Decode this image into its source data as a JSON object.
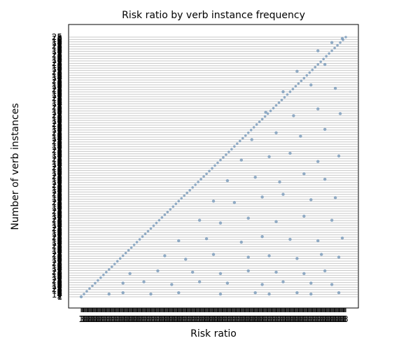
{
  "chart_data": {
    "type": "scatter",
    "title": "Risk ratio by verb instance frequency",
    "xlabel": "Risk ratio",
    "ylabel": "Number of verb instances",
    "grid": "horizontal",
    "legend": "none",
    "point_color": "#6f93b5",
    "point_opacity": 0.75,
    "overplotted_tick_labels": true,
    "x_category_count": 320,
    "y_category_count": 270,
    "visible_y_tick_labels": [
      "25",
      "3",
      "10",
      "5",
      "6",
      "8",
      "14",
      "2",
      "1"
    ],
    "visible_x_tick_labels": [
      "1",
      "3"
    ],
    "series": [
      {
        "points": [
          [
            0,
            0
          ],
          [
            4,
            4
          ],
          [
            8,
            8
          ],
          [
            12,
            12
          ],
          [
            16,
            16
          ],
          [
            20,
            20
          ],
          [
            24,
            24
          ],
          [
            28,
            28
          ],
          [
            32,
            32
          ],
          [
            36,
            36
          ],
          [
            40,
            40
          ],
          [
            44,
            44
          ],
          [
            48,
            48
          ],
          [
            52,
            52
          ],
          [
            56,
            56
          ],
          [
            60,
            60
          ],
          [
            64,
            64
          ],
          [
            68,
            68
          ],
          [
            72,
            72
          ],
          [
            76,
            76
          ],
          [
            80,
            80
          ],
          [
            84,
            84
          ],
          [
            88,
            88
          ],
          [
            92,
            92
          ],
          [
            96,
            96
          ],
          [
            100,
            100
          ],
          [
            104,
            104
          ],
          [
            108,
            108
          ],
          [
            112,
            112
          ],
          [
            116,
            116
          ],
          [
            120,
            120
          ],
          [
            124,
            124
          ],
          [
            128,
            128
          ],
          [
            132,
            132
          ],
          [
            136,
            136
          ],
          [
            140,
            140
          ],
          [
            144,
            144
          ],
          [
            148,
            148
          ],
          [
            152,
            152
          ],
          [
            156,
            156
          ],
          [
            160,
            160
          ],
          [
            164,
            164
          ],
          [
            168,
            168
          ],
          [
            172,
            172
          ],
          [
            176,
            176
          ],
          [
            180,
            180
          ],
          [
            184,
            184
          ],
          [
            188,
            188
          ],
          [
            192,
            192
          ],
          [
            196,
            196
          ],
          [
            200,
            200
          ],
          [
            204,
            204
          ],
          [
            208,
            208
          ],
          [
            212,
            212
          ],
          [
            216,
            216
          ],
          [
            220,
            220
          ],
          [
            224,
            224
          ],
          [
            228,
            228
          ],
          [
            232,
            232
          ],
          [
            236,
            236
          ],
          [
            240,
            240
          ],
          [
            244,
            244
          ],
          [
            248,
            248
          ],
          [
            252,
            252
          ],
          [
            256,
            256
          ],
          [
            260,
            260
          ],
          [
            264,
            264
          ],
          [
            268,
            268
          ],
          [
            272,
            272
          ],
          [
            276,
            276
          ],
          [
            280,
            280
          ],
          [
            284,
            284
          ],
          [
            288,
            288
          ],
          [
            292,
            292
          ],
          [
            296,
            296
          ],
          [
            300,
            300
          ],
          [
            304,
            304
          ],
          [
            308,
            308
          ],
          [
            312,
            312
          ],
          [
            316,
            316
          ],
          [
            320,
            320
          ],
          [
            324,
            324
          ],
          [
            328,
            328
          ],
          [
            332,
            332
          ],
          [
            336,
            336
          ],
          [
            340,
            340
          ],
          [
            344,
            344
          ],
          [
            348,
            348
          ],
          [
            352,
            352
          ],
          [
            356,
            356
          ],
          [
            360,
            360
          ],
          [
            364,
            364
          ],
          [
            368,
            368
          ],
          [
            372,
            372
          ],
          [
            376,
            376
          ],
          [
            380,
            380
          ],
          [
            40,
            4
          ],
          [
            60,
            6
          ],
          [
            100,
            4
          ],
          [
            140,
            6
          ],
          [
            200,
            4
          ],
          [
            250,
            6
          ],
          [
            270,
            4
          ],
          [
            310,
            6
          ],
          [
            330,
            4
          ],
          [
            370,
            6
          ],
          [
            60,
            20
          ],
          [
            90,
            22
          ],
          [
            130,
            18
          ],
          [
            170,
            22
          ],
          [
            210,
            20
          ],
          [
            260,
            18
          ],
          [
            290,
            22
          ],
          [
            330,
            20
          ],
          [
            360,
            18
          ],
          [
            70,
            34
          ],
          [
            110,
            38
          ],
          [
            160,
            36
          ],
          [
            200,
            34
          ],
          [
            240,
            38
          ],
          [
            280,
            36
          ],
          [
            320,
            34
          ],
          [
            350,
            38
          ],
          [
            120,
            60
          ],
          [
            150,
            55
          ],
          [
            190,
            62
          ],
          [
            240,
            58
          ],
          [
            270,
            60
          ],
          [
            310,
            56
          ],
          [
            345,
            62
          ],
          [
            370,
            58
          ],
          [
            140,
            82
          ],
          [
            180,
            85
          ],
          [
            230,
            80
          ],
          [
            260,
            88
          ],
          [
            300,
            84
          ],
          [
            340,
            82
          ],
          [
            375,
            86
          ],
          [
            170,
            112
          ],
          [
            200,
            108
          ],
          [
            240,
            115
          ],
          [
            280,
            110
          ],
          [
            320,
            118
          ],
          [
            360,
            112
          ],
          [
            190,
            140
          ],
          [
            220,
            138
          ],
          [
            260,
            146
          ],
          [
            290,
            150
          ],
          [
            330,
            142
          ],
          [
            365,
            145
          ],
          [
            210,
            170
          ],
          [
            250,
            175
          ],
          [
            285,
            168
          ],
          [
            320,
            180
          ],
          [
            350,
            172
          ],
          [
            230,
            200
          ],
          [
            270,
            205
          ],
          [
            300,
            210
          ],
          [
            340,
            198
          ],
          [
            370,
            206
          ],
          [
            245,
            230
          ],
          [
            280,
            240
          ],
          [
            315,
            235
          ],
          [
            350,
            245
          ],
          [
            265,
            270
          ],
          [
            305,
            265
          ],
          [
            340,
            275
          ],
          [
            372,
            268
          ],
          [
            290,
            300
          ],
          [
            330,
            310
          ],
          [
            365,
            305
          ],
          [
            310,
            330
          ],
          [
            350,
            340
          ],
          [
            340,
            360
          ],
          [
            360,
            372
          ],
          [
            375,
            378
          ]
        ]
      }
    ]
  }
}
